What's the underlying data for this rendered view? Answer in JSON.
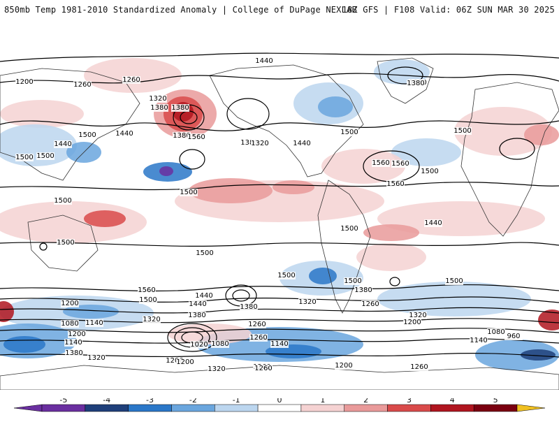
{
  "header": {
    "left_title": "850mb Temp 1981-2010 Standardized Anomaly | College of DuPage NEXLAB",
    "right_title": "18Z GFS | F108 Valid: 06Z SUN MAR 30 2025"
  },
  "colors": {
    "neg5": "#6a2fa0",
    "neg4": "#1f3f7a",
    "neg3": "#2a77c8",
    "neg2": "#6aa6de",
    "neg1": "#bcd6ef",
    "zero": "#ffffff",
    "pos1": "#f5d2d2",
    "pos2": "#e99a9a",
    "pos3": "#d94a4a",
    "pos4": "#b0151f",
    "pos5": "#7a0010",
    "cap": "#f0c020"
  },
  "colorbar": {
    "ticks": [
      "-5",
      "-4",
      "-3",
      "-2",
      "-1",
      "0",
      "1",
      "2",
      "3",
      "4",
      "5"
    ]
  },
  "contours": {
    "labels": [
      "1200",
      "1260",
      "1260",
      "1320",
      "1380",
      "1380",
      "1440",
      "1380",
      "1380",
      "1320",
      "1380",
      "1560",
      "1500",
      "1440",
      "1500",
      "1440",
      "1500",
      "1560",
      "1440",
      "1500",
      "1380",
      "1500",
      "1560",
      "1500",
      "1560",
      "1500",
      "1500",
      "1500",
      "1500",
      "1500",
      "1440",
      "1500",
      "1500",
      "1500",
      "1560",
      "1440",
      "1380",
      "1320",
      "1200",
      "1500",
      "1440",
      "1380",
      "1380",
      "1260",
      "1320",
      "1200",
      "1080",
      "1140",
      "1260",
      "1320",
      "1200",
      "1140",
      "1080",
      "1260",
      "1020",
      "1200",
      "1140",
      "1140",
      "1080",
      "960",
      "1380",
      "1320",
      "1260",
      "1200",
      "1320",
      "1260",
      "1200",
      "1260"
    ]
  }
}
